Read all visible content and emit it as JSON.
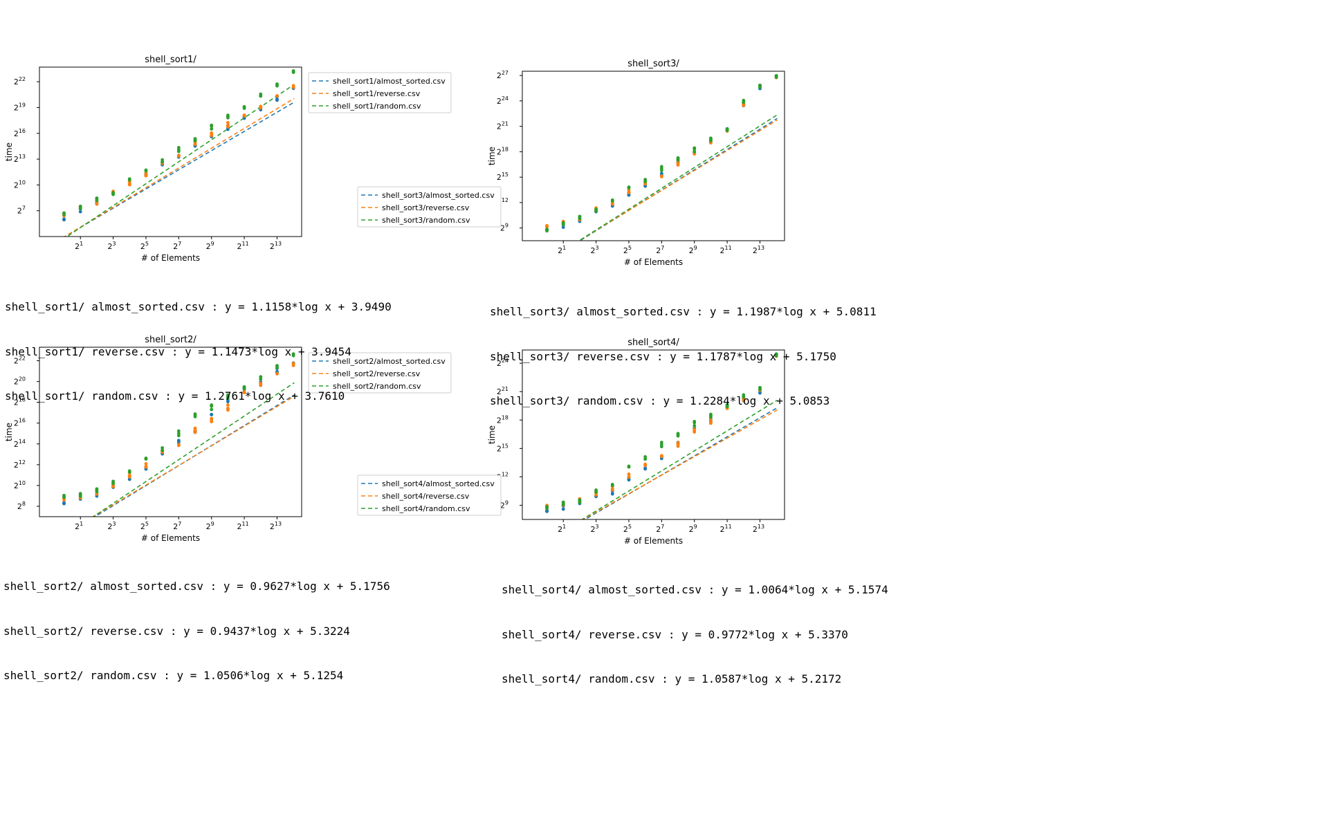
{
  "colors": {
    "almost_sorted": "#1f77b4",
    "reverse": "#ff7f0e",
    "random": "#2ca02c"
  },
  "chart_data": [
    {
      "type": "scatter",
      "title": "shell_sort1/",
      "xlabel": "# of Elements",
      "ylabel": "time",
      "scale": "log2",
      "grid": false,
      "xlim_log2": [
        -1.5,
        14.5
      ],
      "ylim_log2": [
        4.0,
        23.7
      ],
      "xticks": [
        {
          "exp": 1,
          "label": "2"
        },
        {
          "exp": 3,
          "label": "2"
        },
        {
          "exp": 5,
          "label": "2"
        },
        {
          "exp": 7,
          "label": "2"
        },
        {
          "exp": 9,
          "label": "2"
        },
        {
          "exp": 11,
          "label": "2"
        },
        {
          "exp": 13,
          "label": "2"
        }
      ],
      "yticks": [
        {
          "exp": 7,
          "label": "2"
        },
        {
          "exp": 10,
          "label": "2"
        },
        {
          "exp": 13,
          "label": "2"
        },
        {
          "exp": 16,
          "label": "2"
        },
        {
          "exp": 19,
          "label": "2"
        },
        {
          "exp": 22,
          "label": "2"
        }
      ],
      "legend_position": "outside-top-right",
      "legend": [
        "shell_sort1/almost_sorted.csv",
        "shell_sort1/reverse.csv",
        "shell_sort1/random.csv"
      ],
      "points_log2_x": [
        0,
        1,
        2,
        3,
        4,
        5,
        6,
        7,
        8,
        9,
        10,
        11,
        12,
        13,
        14
      ],
      "series": [
        {
          "name": "shell_sort1/almost_sorted.csv",
          "color": "#1f77b4",
          "slope": 1.1158,
          "intercept": 3.949,
          "points_log2_y": [
            6.2,
            7.1,
            8.0,
            9.1,
            10.2,
            11.1,
            12.3,
            13.4,
            14.6,
            15.6,
            16.7,
            17.7,
            18.9,
            20.0,
            21.1
          ]
        },
        {
          "name": "shell_sort1/reverse.csv",
          "color": "#ff7f0e",
          "slope": 1.1473,
          "intercept": 3.9454,
          "points_log2_y": [
            6.4,
            7.3,
            8.0,
            9.2,
            10.2,
            11.2,
            12.5,
            13.6,
            14.9,
            15.9,
            17.0,
            18.0,
            19.2,
            20.4,
            21.5
          ]
        },
        {
          "name": "shell_sort1/random.csv",
          "color": "#2ca02c",
          "slope": 1.2761,
          "intercept": 3.761,
          "points_log2_y": [
            6.6,
            7.3,
            8.4,
            9.1,
            10.6,
            11.5,
            12.8,
            14.1,
            15.3,
            16.7,
            17.9,
            19.1,
            20.4,
            21.7,
            23.3
          ]
        }
      ]
    },
    {
      "type": "scatter",
      "title": "shell_sort3/",
      "xlabel": "# of Elements",
      "ylabel": "time",
      "scale": "log2",
      "grid": false,
      "xlim_log2": [
        -1.5,
        14.5
      ],
      "ylim_log2": [
        7.5,
        27.5
      ],
      "xticks": [
        {
          "exp": 1,
          "label": "2"
        },
        {
          "exp": 3,
          "label": "2"
        },
        {
          "exp": 5,
          "label": "2"
        },
        {
          "exp": 7,
          "label": "2"
        },
        {
          "exp": 9,
          "label": "2"
        },
        {
          "exp": 11,
          "label": "2"
        },
        {
          "exp": 13,
          "label": "2"
        }
      ],
      "yticks": [
        {
          "exp": 9,
          "label": "2"
        },
        {
          "exp": 12,
          "label": "2"
        },
        {
          "exp": 15,
          "label": "2"
        },
        {
          "exp": 18,
          "label": "2"
        },
        {
          "exp": 21,
          "label": "2"
        },
        {
          "exp": 24,
          "label": "2"
        },
        {
          "exp": 27,
          "label": "2"
        }
      ],
      "legend_position": "outside-left",
      "legend": [
        "shell_sort3/almost_sorted.csv",
        "shell_sort3/reverse.csv",
        "shell_sort3/random.csv"
      ],
      "points_log2_x": [
        0,
        1,
        2,
        3,
        4,
        5,
        6,
        7,
        8,
        9,
        10,
        11,
        12,
        13,
        14
      ],
      "series": [
        {
          "name": "shell_sort3/almost_sorted.csv",
          "color": "#1f77b4",
          "slope": 1.1987,
          "intercept": 5.0811,
          "points_log2_y": [
            9.0,
            9.3,
            10.0,
            11.0,
            11.7,
            12.9,
            13.9,
            15.4,
            16.8,
            17.9,
            19.3,
            20.5,
            23.6,
            25.6,
            26.8
          ]
        },
        {
          "name": "shell_sort3/reverse.csv",
          "color": "#ff7f0e",
          "slope": 1.1787,
          "intercept": 5.175,
          "points_log2_y": [
            9.1,
            9.6,
            10.2,
            11.3,
            12.0,
            13.3,
            14.2,
            15.3,
            16.6,
            17.9,
            19.3,
            20.4,
            23.7,
            25.7,
            26.9
          ]
        },
        {
          "name": "shell_sort3/random.csv",
          "color": "#2ca02c",
          "slope": 1.2284,
          "intercept": 5.0853,
          "points_log2_y": [
            8.7,
            9.4,
            10.3,
            11.2,
            12.2,
            13.6,
            14.6,
            16.0,
            17.2,
            18.2,
            19.4,
            20.7,
            23.9,
            25.8,
            27.0
          ]
        }
      ]
    },
    {
      "type": "scatter",
      "title": "shell_sort2/",
      "xlabel": "# of Elements",
      "ylabel": "time",
      "scale": "log2",
      "grid": false,
      "xlim_log2": [
        -1.5,
        14.5
      ],
      "ylim_log2": [
        7.0,
        23.3
      ],
      "xticks": [
        {
          "exp": 1,
          "label": "2"
        },
        {
          "exp": 3,
          "label": "2"
        },
        {
          "exp": 5,
          "label": "2"
        },
        {
          "exp": 7,
          "label": "2"
        },
        {
          "exp": 9,
          "label": "2"
        },
        {
          "exp": 11,
          "label": "2"
        },
        {
          "exp": 13,
          "label": "2"
        }
      ],
      "yticks": [
        {
          "exp": 8,
          "label": "2"
        },
        {
          "exp": 10,
          "label": "2"
        },
        {
          "exp": 12,
          "label": "2"
        },
        {
          "exp": 14,
          "label": "2"
        },
        {
          "exp": 16,
          "label": "2"
        },
        {
          "exp": 18,
          "label": "2"
        },
        {
          "exp": 20,
          "label": "2"
        },
        {
          "exp": 22,
          "label": "2"
        }
      ],
      "legend_position": "outside-top-right",
      "legend": [
        "shell_sort2/almost_sorted.csv",
        "shell_sort2/reverse.csv",
        "shell_sort2/random.csv"
      ],
      "points_log2_x": [
        0,
        1,
        2,
        3,
        4,
        5,
        6,
        7,
        8,
        9,
        10,
        11,
        12,
        13,
        14
      ],
      "series": [
        {
          "name": "shell_sort2/almost_sorted.csv",
          "color": "#1f77b4",
          "slope": 0.9627,
          "intercept": 5.1756,
          "points_log2_y": [
            8.5,
            8.9,
            9.2,
            9.9,
            10.7,
            11.6,
            13.0,
            14.3,
            15.2,
            16.8,
            18.3,
            19.2,
            19.8,
            21.0,
            21.6
          ]
        },
        {
          "name": "shell_sort2/reverse.csv",
          "color": "#ff7f0e",
          "slope": 0.9437,
          "intercept": 5.3224,
          "points_log2_y": [
            8.6,
            8.8,
            9.4,
            10.1,
            11.0,
            11.9,
            13.2,
            14.1,
            15.3,
            16.3,
            17.5,
            18.9,
            19.9,
            20.8,
            21.7
          ]
        },
        {
          "name": "shell_sort2/random.csv",
          "color": "#2ca02c",
          "slope": 1.0506,
          "intercept": 5.1254,
          "points_log2_y": [
            8.9,
            9.0,
            9.6,
            10.4,
            11.3,
            12.4,
            13.5,
            15.0,
            16.8,
            17.5,
            18.5,
            19.5,
            20.3,
            21.5,
            22.7
          ]
        }
      ]
    },
    {
      "type": "scatter",
      "title": "shell_sort4/",
      "xlabel": "# of Elements",
      "ylabel": "time",
      "scale": "log2",
      "grid": false,
      "xlim_log2": [
        -1.5,
        14.5
      ],
      "ylim_log2": [
        7.5,
        25.4
      ],
      "xticks": [
        {
          "exp": 1,
          "label": "2"
        },
        {
          "exp": 3,
          "label": "2"
        },
        {
          "exp": 5,
          "label": "2"
        },
        {
          "exp": 7,
          "label": "2"
        },
        {
          "exp": 9,
          "label": "2"
        },
        {
          "exp": 11,
          "label": "2"
        },
        {
          "exp": 13,
          "label": "2"
        }
      ],
      "yticks": [
        {
          "exp": 9,
          "label": "2"
        },
        {
          "exp": 12,
          "label": "2"
        },
        {
          "exp": 15,
          "label": "2"
        },
        {
          "exp": 18,
          "label": "2"
        },
        {
          "exp": 21,
          "label": "2"
        },
        {
          "exp": 24,
          "label": "2"
        }
      ],
      "legend_position": "outside-left",
      "legend": [
        "shell_sort4/almost_sorted.csv",
        "shell_sort4/reverse.csv",
        "shell_sort4/random.csv"
      ],
      "points_log2_x": [
        0,
        1,
        2,
        3,
        4,
        5,
        6,
        7,
        8,
        9,
        10,
        11,
        12,
        13,
        14
      ],
      "series": [
        {
          "name": "shell_sort4/almost_sorted.csv",
          "color": "#1f77b4",
          "slope": 1.0064,
          "intercept": 5.1574,
          "points_log2_y": [
            8.6,
            8.8,
            9.4,
            10.0,
            10.3,
            11.7,
            12.8,
            14.1,
            15.6,
            17.1,
            18.0,
            19.4,
            20.2,
            21.0,
            24.8
          ]
        },
        {
          "name": "shell_sort4/reverse.csv",
          "color": "#ff7f0e",
          "slope": 0.9772,
          "intercept": 5.337,
          "points_log2_y": [
            8.8,
            9.0,
            9.6,
            10.3,
            10.8,
            12.1,
            13.2,
            14.4,
            15.4,
            16.9,
            17.9,
            19.2,
            20.3,
            21.2,
            24.9
          ]
        },
        {
          "name": "shell_sort4/random.csv",
          "color": "#2ca02c",
          "slope": 1.0587,
          "intercept": 5.2172,
          "points_log2_y": [
            8.7,
            9.1,
            9.5,
            10.6,
            11.1,
            12.9,
            14.0,
            15.4,
            16.5,
            17.6,
            18.4,
            19.6,
            20.5,
            21.4,
            25.0
          ]
        }
      ]
    }
  ],
  "fits": {
    "s1": [
      "shell_sort1/ almost_sorted.csv : y = 1.1158*log x + 3.9490",
      "shell_sort1/ reverse.csv : y = 1.1473*log x + 3.9454",
      "shell_sort1/ random.csv : y = 1.2761*log x + 3.7610"
    ],
    "s3": [
      "shell_sort3/ almost_sorted.csv : y = 1.1987*log x + 5.0811",
      "shell_sort3/ reverse.csv : y = 1.1787*log x + 5.1750",
      "shell_sort3/ random.csv : y = 1.2284*log x + 5.0853"
    ],
    "s2": [
      "shell_sort2/ almost_sorted.csv : y = 0.9627*log x + 5.1756",
      "shell_sort2/ reverse.csv : y = 0.9437*log x + 5.3224",
      "shell_sort2/ random.csv : y = 1.0506*log x + 5.1254"
    ],
    "s4": [
      "shell_sort4/ almost_sorted.csv : y = 1.0064*log x + 5.1574",
      "shell_sort4/ reverse.csv : y = 0.9772*log x + 5.3370",
      "shell_sort4/ random.csv : y = 1.0587*log x + 5.2172"
    ]
  }
}
